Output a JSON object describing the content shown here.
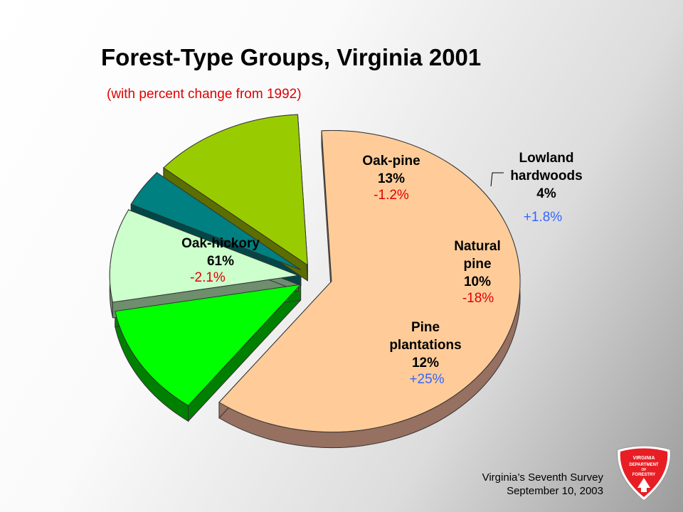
{
  "title": "Forest-Type Groups, Virginia 2001",
  "subtitle": "(with percent change from 1992)",
  "footer": {
    "line1": "Virginia’s Seventh Survey",
    "line2": "September 10, 2003"
  },
  "logo": {
    "line1": "VIRGINIA",
    "line2": "DEPARTMENT",
    "line3": "OF",
    "line4": "FORESTRY",
    "color": "#e81e25"
  },
  "chart_data": {
    "type": "pie",
    "title": "Forest-Type Groups, Virginia 2001",
    "subtitle": "(with percent change from 1992)",
    "exploded": true,
    "three_d": true,
    "slices": [
      {
        "label": "Oak-hickory",
        "label_lines": [
          "Oak-hickory"
        ],
        "value": 61,
        "value_label": "61%",
        "change": "-2.1%",
        "change_color": "#e00000",
        "color": "#ffcc99",
        "side_color": "#967060"
      },
      {
        "label": "Pine plantations",
        "label_lines": [
          "Pine",
          "plantations"
        ],
        "value": 12,
        "value_label": "12%",
        "change": "+25%",
        "change_color": "#3366ff",
        "color": "#00ff00",
        "side_color": "#008000"
      },
      {
        "label": "Natural pine",
        "label_lines": [
          "Natural",
          "pine"
        ],
        "value": 10,
        "value_label": "10%",
        "change": "-18%",
        "change_color": "#e00000",
        "color": "#ccffcc",
        "side_color": "#6e8e6e"
      },
      {
        "label": "Lowland hardwoods",
        "label_lines": [
          "Lowland",
          "hardwoods"
        ],
        "value": 4,
        "value_label": "4%",
        "change": "+1.8%",
        "change_color": "#3366ff",
        "color": "#008080",
        "side_color": "#004848"
      },
      {
        "label": "Oak-pine",
        "label_lines": [
          "Oak-pine"
        ],
        "value": 13,
        "value_label": "13%",
        "change": "-1.2%",
        "change_color": "#e00000",
        "color": "#99cc00",
        "side_color": "#5c6e00"
      }
    ]
  }
}
